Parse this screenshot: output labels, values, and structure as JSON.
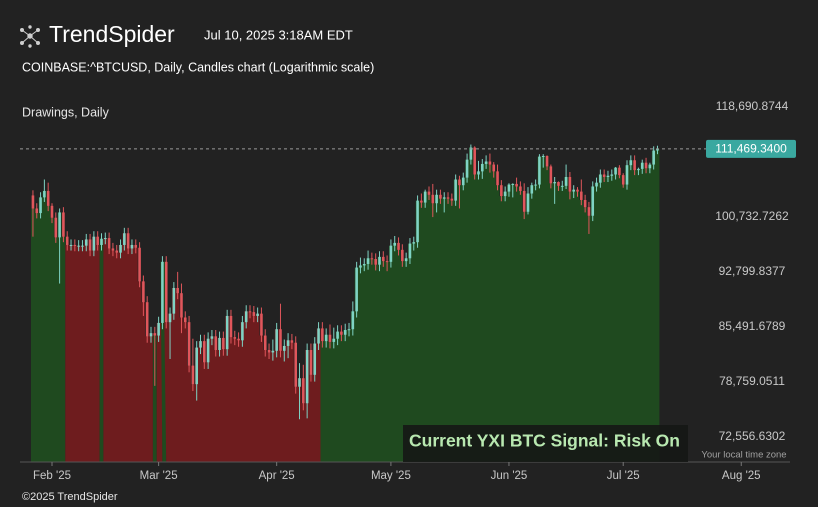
{
  "brand": "TrendSpider",
  "timestamp": "Jul 10, 2025 3:18AM EDT",
  "footer": "©2025 TrendSpider",
  "chart_data": {
    "type": "candlestick",
    "title": "COINBASE:^BTCUSD, Daily, Candles chart (Logarithmic scale)",
    "subtitle": "Drawings, Daily",
    "annotation": "Current YXI BTC Signal: Risk On",
    "timezone_note": "Your local time zone",
    "log_scale": true,
    "grid": false,
    "up_color": "#7fd3c4",
    "down_color": "#e0565b",
    "ylim": [
      69900,
      119900
    ],
    "yticks": [
      {
        "value": 118690.8744,
        "label": "118,690.8744"
      },
      {
        "value": 100732.7262,
        "label": "100,732.7262"
      },
      {
        "value": 92799.8377,
        "label": "92,799.8377"
      },
      {
        "value": 85491.6789,
        "label": "85,491.6789"
      },
      {
        "value": 78759.0511,
        "label": "78,759.0511"
      },
      {
        "value": 72556.6302,
        "label": "72,556.6302"
      }
    ],
    "xlim": [
      22.6,
      224.8
    ],
    "xticks": [
      {
        "value": 31,
        "label": "Feb '25"
      },
      {
        "value": 59,
        "label": "Mar '25"
      },
      {
        "value": 90,
        "label": "Apr '25"
      },
      {
        "value": 120,
        "label": "May '25"
      },
      {
        "value": 151,
        "label": "Jun '25"
      },
      {
        "value": 181,
        "label": "Jul '25"
      },
      {
        "value": 212,
        "label": "Aug '25"
      }
    ],
    "last_price": {
      "value": 111469.34,
      "label": "111,469.3400",
      "color": "#3aa8a0"
    },
    "regions": [
      {
        "start": 25.5,
        "end": 34.5,
        "color": "#1f4a1f"
      },
      {
        "start": 34.5,
        "end": 43.5,
        "color": "#6e1c1e"
      },
      {
        "start": 43.5,
        "end": 44.5,
        "color": "#1f4a1f"
      },
      {
        "start": 44.5,
        "end": 57.5,
        "color": "#6e1c1e"
      },
      {
        "start": 57.5,
        "end": 58.5,
        "color": "#1f4a1f"
      },
      {
        "start": 58.5,
        "end": 60,
        "color": "#6e1c1e"
      },
      {
        "start": 60,
        "end": 61,
        "color": "#1f4a1f"
      },
      {
        "start": 61,
        "end": 101.5,
        "color": "#6e1c1e"
      },
      {
        "start": 101.5,
        "end": 190.5,
        "color": "#1f4a1f"
      }
    ],
    "x": [
      26,
      27,
      28,
      29,
      30,
      31,
      32,
      33,
      34,
      35,
      36,
      37,
      38,
      39,
      40,
      41,
      42,
      43,
      44,
      45,
      46,
      47,
      48,
      49,
      50,
      51,
      52,
      53,
      54,
      55,
      56,
      57,
      58,
      59,
      60,
      61,
      62,
      63,
      64,
      65,
      66,
      67,
      68,
      69,
      70,
      71,
      72,
      73,
      74,
      75,
      76,
      77,
      78,
      79,
      80,
      81,
      82,
      83,
      84,
      85,
      86,
      87,
      88,
      89,
      90,
      91,
      92,
      93,
      94,
      95,
      96,
      97,
      98,
      99,
      100,
      101,
      102,
      103,
      104,
      105,
      106,
      107,
      108,
      109,
      110,
      111,
      112,
      113,
      114,
      115,
      116,
      117,
      118,
      119,
      120,
      121,
      122,
      123,
      124,
      125,
      126,
      127,
      128,
      129,
      130,
      131,
      132,
      133,
      134,
      135,
      136,
      137,
      138,
      139,
      140,
      141,
      142,
      143,
      144,
      145,
      146,
      147,
      148,
      149,
      150,
      151,
      152,
      153,
      154,
      155,
      156,
      157,
      158,
      159,
      160,
      161,
      162,
      163,
      164,
      165,
      166,
      167,
      168,
      169,
      170,
      171,
      172,
      173,
      174,
      175,
      176,
      177,
      178,
      179,
      180,
      181,
      182,
      183,
      184,
      185,
      186,
      187,
      188,
      189,
      190
    ],
    "open": [
      104000,
      102000,
      101300,
      103700,
      104700,
      102400,
      100600,
      97700,
      101400,
      97800,
      96600,
      96600,
      96500,
      96500,
      96500,
      97400,
      95800,
      97800,
      96600,
      97500,
      97600,
      96100,
      95800,
      95500,
      96600,
      98300,
      96100,
      96600,
      96200,
      91500,
      88700,
      84300,
      84700,
      84400,
      86000,
      94200,
      86100,
      87200,
      90600,
      89900,
      86700,
      86100,
      80700,
      78500,
      82900,
      83700,
      81100,
      84000,
      84300,
      82600,
      84100,
      82700,
      86900,
      84200,
      84000,
      83800,
      86100,
      87500,
      87400,
      86900,
      87200,
      84400,
      82600,
      82300,
      82500,
      85200,
      82500,
      83100,
      83800,
      83500,
      78200,
      79200,
      76300,
      82600,
      79600,
      83400,
      85300,
      83700,
      84500,
      83600,
      84000,
      84900,
      84500,
      85100,
      85200,
      87500,
      93400,
      93700,
      93900,
      94700,
      94600,
      93800,
      94900,
      94300,
      94200,
      96500,
      96900,
      95900,
      94300,
      94700,
      96800,
      97000,
      103200,
      102900,
      104600,
      104100,
      102800,
      104100,
      103500,
      103700,
      103500,
      103200,
      106500,
      105600,
      106800,
      109700,
      111700,
      107300,
      107800,
      109000,
      109400,
      108900,
      107800,
      105600,
      103900,
      104600,
      105700,
      105800,
      105400,
      104700,
      101500,
      104300,
      105600,
      105700,
      110200,
      110300,
      108600,
      105900,
      106100,
      105500,
      105500,
      106900,
      104600,
      104900,
      104600,
      103300,
      102200,
      100900,
      105400,
      106000,
      107300,
      106900,
      107100,
      107300,
      108400,
      107200,
      105700,
      108800,
      109600,
      108000,
      108200,
      109200,
      108300,
      108900,
      111200
    ],
    "high": [
      104800,
      102800,
      104500,
      106500,
      106000,
      102800,
      101400,
      102000,
      102200,
      98600,
      97400,
      97400,
      97300,
      97300,
      98200,
      98200,
      98600,
      98600,
      98300,
      98400,
      98400,
      96900,
      96600,
      97400,
      99100,
      99100,
      97400,
      97400,
      97000,
      92300,
      89500,
      85500,
      85500,
      86800,
      95000,
      95000,
      88000,
      91400,
      92800,
      91200,
      87500,
      86900,
      84000,
      83700,
      84500,
      84500,
      84800,
      85100,
      85100,
      84900,
      84900,
      87700,
      87700,
      85000,
      84800,
      86900,
      88300,
      88300,
      88200,
      88000,
      88000,
      85200,
      83400,
      83900,
      86000,
      88500,
      83900,
      84700,
      84600,
      84300,
      81000,
      80800,
      83400,
      83400,
      84200,
      86100,
      86100,
      85300,
      85800,
      85400,
      85700,
      85700,
      85900,
      86000,
      88800,
      94200,
      94800,
      94700,
      95800,
      95500,
      95400,
      95700,
      95700,
      95100,
      97400,
      97900,
      97700,
      96700,
      95500,
      97600,
      97800,
      104000,
      104300,
      104900,
      105400,
      105800,
      104900,
      104900,
      104500,
      104500,
      104300,
      107300,
      107100,
      107600,
      110700,
      112200,
      111900,
      109500,
      109800,
      110400,
      110700,
      109300,
      108900,
      106400,
      105400,
      105900,
      105900,
      106800,
      106200,
      105900,
      105300,
      106000,
      106500,
      110600,
      110600,
      110400,
      108900,
      106900,
      106200,
      106300,
      108900,
      107700,
      105600,
      105300,
      106500,
      104100,
      103000,
      106200,
      106800,
      108100,
      108100,
      107900,
      108100,
      108500,
      108800,
      107500,
      109600,
      110400,
      110400,
      108400,
      109700,
      110000,
      109200,
      111900,
      112000
    ],
    "low": [
      97800,
      100500,
      100500,
      103000,
      101600,
      99800,
      96900,
      91200,
      97000,
      95800,
      95800,
      95700,
      95700,
      95700,
      95700,
      95000,
      95000,
      95800,
      95800,
      96700,
      95300,
      95000,
      94700,
      94700,
      95800,
      95300,
      95300,
      95400,
      90700,
      86900,
      83500,
      83500,
      78300,
      83600,
      85200,
      85300,
      81500,
      86400,
      89100,
      84700,
      85300,
      79900,
      77700,
      76600,
      82100,
      80300,
      80300,
      83200,
      81800,
      81800,
      81900,
      81900,
      83400,
      83200,
      83000,
      83000,
      85300,
      86600,
      86100,
      86100,
      83600,
      81800,
      81500,
      81300,
      81700,
      81700,
      81200,
      81600,
      82700,
      77400,
      74500,
      75500,
      74600,
      78800,
      78800,
      82600,
      82900,
      82900,
      82800,
      82800,
      83200,
      83700,
      83700,
      84300,
      84400,
      86700,
      92600,
      92900,
      93100,
      93800,
      93000,
      92900,
      93500,
      92900,
      93400,
      95700,
      95100,
      93500,
      93500,
      93900,
      95800,
      96200,
      102100,
      102100,
      103300,
      100700,
      101400,
      102700,
      101400,
      102700,
      102400,
      102400,
      102000,
      104800,
      106000,
      108900,
      106500,
      106500,
      106600,
      108200,
      107600,
      106800,
      104800,
      103100,
      103100,
      103800,
      103700,
      104600,
      104100,
      100400,
      101100,
      103500,
      104800,
      105100,
      108400,
      108000,
      105100,
      102700,
      104700,
      104700,
      105000,
      103400,
      103600,
      103800,
      102500,
      101400,
      98200,
      100100,
      104600,
      105200,
      106100,
      106100,
      106300,
      106500,
      106700,
      105200,
      104900,
      108000,
      107200,
      107200,
      107400,
      107500,
      107500,
      108100,
      110600
    ],
    "close": [
      102000,
      101300,
      103700,
      104700,
      102400,
      100600,
      97700,
      101400,
      97800,
      96600,
      96600,
      96500,
      96500,
      96500,
      97400,
      95800,
      97800,
      96600,
      97500,
      97600,
      96100,
      95800,
      95500,
      96600,
      98300,
      96100,
      96600,
      96200,
      91500,
      88700,
      84300,
      84700,
      84400,
      86000,
      94200,
      86100,
      87200,
      90600,
      89900,
      86700,
      86100,
      80700,
      78500,
      82900,
      83700,
      81100,
      84000,
      84300,
      82600,
      84100,
      82700,
      86900,
      84200,
      84000,
      83800,
      86100,
      87500,
      87400,
      86900,
      87200,
      84400,
      82600,
      82300,
      82500,
      85200,
      82500,
      83100,
      83800,
      83500,
      78200,
      79200,
      76300,
      82600,
      79600,
      83400,
      85300,
      83700,
      84500,
      83600,
      84000,
      84900,
      84500,
      85100,
      85200,
      87500,
      93400,
      93700,
      93900,
      94700,
      94600,
      93800,
      94900,
      94300,
      94200,
      96500,
      96900,
      95900,
      94300,
      94700,
      96800,
      97000,
      103200,
      102900,
      104600,
      104100,
      102800,
      104100,
      103500,
      103700,
      103500,
      103200,
      106500,
      105600,
      106800,
      109700,
      111700,
      107300,
      107800,
      109000,
      109400,
      108900,
      107800,
      105600,
      103900,
      104600,
      105700,
      105800,
      105400,
      104700,
      101500,
      104300,
      105600,
      105700,
      110200,
      110300,
      108600,
      105900,
      106100,
      105500,
      105500,
      106900,
      104600,
      104900,
      104600,
      103300,
      102200,
      100900,
      105400,
      106000,
      107300,
      106900,
      107100,
      107300,
      108400,
      107200,
      105700,
      108800,
      109600,
      108000,
      108200,
      109200,
      108300,
      108900,
      111200,
      111469.34
    ]
  }
}
